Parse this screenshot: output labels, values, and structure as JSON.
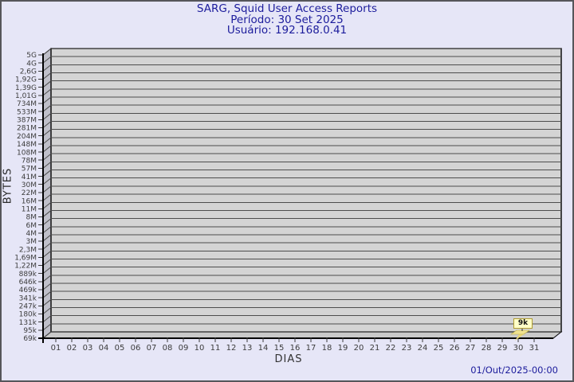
{
  "header": {
    "title": "SARG, Squid User Access Reports",
    "period": "Período: 30 Set 2025",
    "user": "Usuário: 192.168.0.41"
  },
  "footer": {
    "date": "01/Out/2025-00:00"
  },
  "colors": {
    "background": "#e6e6f7",
    "title_text": "#1c1c9c",
    "plot_face": "#d4d4d4",
    "plot_wall": "#bfbfc9",
    "plot_floor": "#c9c9c9",
    "grid_line": "#4d4d4d",
    "axis_line": "#000000",
    "axis_text": "#3c3c3c",
    "bar_fill": "#f0e290",
    "bar_fill_dark": "#e8d678",
    "bar_edge": "#b8a83c",
    "tooltip_bg": "#ffffc8",
    "tooltip_border": "#b09c30"
  },
  "chart_data": {
    "type": "bar",
    "title": "SARG, Squid User Access Reports",
    "subtitle": "Período: 30 Set 2025 — Usuário: 192.168.0.41",
    "xlabel": "DIAS",
    "ylabel": "BYTES",
    "y_scale": "log",
    "grid": true,
    "legend_position": "none",
    "y_tick_labels": [
      "5G",
      "4G",
      "2,6G",
      "1,92G",
      "1,39G",
      "1,01G",
      "734M",
      "533M",
      "387M",
      "281M",
      "204M",
      "148M",
      "108M",
      "78M",
      "57M",
      "41M",
      "30M",
      "22M",
      "16M",
      "11M",
      "8M",
      "6M",
      "4M",
      "3M",
      "2,3M",
      "1,69M",
      "1,22M",
      "889k",
      "646k",
      "469k",
      "341k",
      "247k",
      "180k",
      "131k",
      "95k",
      "69k"
    ],
    "categories": [
      "01",
      "02",
      "03",
      "04",
      "05",
      "06",
      "07",
      "08",
      "09",
      "10",
      "11",
      "12",
      "13",
      "14",
      "15",
      "16",
      "17",
      "18",
      "19",
      "20",
      "21",
      "22",
      "23",
      "24",
      "25",
      "26",
      "27",
      "28",
      "29",
      "30",
      "31"
    ],
    "values": [
      0,
      0,
      0,
      0,
      0,
      0,
      0,
      0,
      0,
      0,
      0,
      0,
      0,
      0,
      0,
      0,
      0,
      0,
      0,
      0,
      0,
      0,
      0,
      0,
      0,
      0,
      0,
      0,
      0,
      9000,
      0
    ],
    "annotation": {
      "day": "30",
      "text": "9k"
    }
  }
}
